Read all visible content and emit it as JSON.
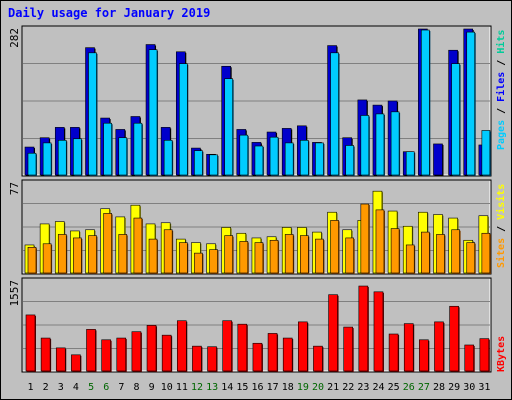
{
  "title": "Daily usage for January 2019",
  "chart_data": [
    {
      "type": "bar",
      "panel": "pages-files-hits",
      "ymax_label": "282",
      "ylim": [
        0,
        282
      ],
      "grid": true,
      "categories": [
        "1",
        "2",
        "3",
        "4",
        "5",
        "6",
        "7",
        "8",
        "9",
        "10",
        "11",
        "12",
        "13",
        "14",
        "15",
        "16",
        "17",
        "18",
        "19",
        "20",
        "21",
        "22",
        "23",
        "24",
        "25",
        "26",
        "27",
        "28",
        "29",
        "30",
        "31"
      ],
      "series": [
        {
          "name": "Pages",
          "color": "#0000cc",
          "values": [
            54,
            72,
            92,
            92,
            246,
            110,
            88,
            113,
            252,
            92,
            238,
            52,
            40,
            210,
            88,
            63,
            83,
            90,
            95,
            63,
            250,
            72,
            145,
            135,
            143,
            45,
            290,
            60,
            241,
            290,
            58
          ]
        },
        {
          "name": "Files",
          "color": "#0066cc",
          "values": [
            0,
            0,
            0,
            0,
            0,
            0,
            0,
            0,
            0,
            0,
            0,
            0,
            0,
            0,
            0,
            0,
            0,
            0,
            0,
            0,
            0,
            0,
            0,
            0,
            0,
            0,
            0,
            0,
            0,
            0,
            0
          ]
        },
        {
          "name": "Hits",
          "color": "#00ccff",
          "values": [
            42,
            62,
            67,
            70,
            236,
            100,
            72,
            100,
            242,
            67,
            215,
            47,
            39,
            186,
            77,
            56,
            73,
            62,
            67,
            62,
            236,
            57,
            115,
            118,
            122,
            45,
            280,
            0,
            215,
            276,
            86
          ]
        }
      ],
      "legend": [
        {
          "label": "Pages",
          "color": "#00ccff"
        },
        {
          "label": "Files",
          "color": "#0000ff"
        },
        {
          "label": "Hits",
          "color": "#00cc99"
        }
      ]
    },
    {
      "type": "bar",
      "panel": "sites-visits",
      "ymax_label": "77",
      "ylim": [
        0,
        77
      ],
      "grid": true,
      "categories": [
        "1",
        "2",
        "3",
        "4",
        "5",
        "6",
        "7",
        "8",
        "9",
        "10",
        "11",
        "12",
        "13",
        "14",
        "15",
        "16",
        "17",
        "18",
        "19",
        "20",
        "21",
        "22",
        "23",
        "24",
        "25",
        "26",
        "27",
        "28",
        "29",
        "30",
        "31"
      ],
      "series": [
        {
          "name": "Visits",
          "color": "#ffff00",
          "values": [
            24,
            42,
            44,
            36,
            37,
            55,
            48,
            58,
            42,
            43,
            29,
            26,
            25,
            39,
            34,
            30,
            31,
            39,
            39,
            35,
            52,
            37,
            45,
            70,
            53,
            40,
            52,
            50,
            47,
            28,
            49
          ]
        },
        {
          "name": "Sites",
          "color": "#ff9900",
          "values": [
            22,
            25,
            33,
            30,
            32,
            51,
            33,
            47,
            29,
            37,
            26,
            17,
            20,
            32,
            27,
            26,
            28,
            33,
            32,
            29,
            45,
            30,
            59,
            54,
            38,
            24,
            35,
            33,
            37,
            26,
            34
          ]
        }
      ],
      "legend": [
        {
          "label": "Sites",
          "color": "#ff9900"
        },
        {
          "label": "Visits",
          "color": "#ffff00"
        }
      ]
    },
    {
      "type": "bar",
      "panel": "kbytes",
      "ymax_label": "1557",
      "ylim": [
        0,
        1557
      ],
      "grid": true,
      "categories": [
        "1",
        "2",
        "3",
        "4",
        "5",
        "6",
        "7",
        "8",
        "9",
        "10",
        "11",
        "12",
        "13",
        "14",
        "15",
        "16",
        "17",
        "18",
        "19",
        "20",
        "21",
        "22",
        "23",
        "24",
        "25",
        "26",
        "27",
        "28",
        "29",
        "30",
        "31"
      ],
      "series": [
        {
          "name": "KBytes",
          "color": "#ff0000",
          "values": [
            970,
            570,
            400,
            280,
            720,
            540,
            570,
            680,
            790,
            620,
            870,
            430,
            420,
            870,
            810,
            480,
            650,
            570,
            850,
            430,
            1320,
            760,
            1470,
            1370,
            640,
            820,
            540,
            850,
            1120,
            450,
            560
          ]
        }
      ],
      "legend": [
        {
          "label": "KBytes",
          "color": "#ff0000"
        }
      ]
    }
  ],
  "x_labels": [
    {
      "text": "1",
      "color": "#000000"
    },
    {
      "text": "2",
      "color": "#000000"
    },
    {
      "text": "3",
      "color": "#000000"
    },
    {
      "text": "4",
      "color": "#000000"
    },
    {
      "text": "5",
      "color": "#006600"
    },
    {
      "text": "6",
      "color": "#006600"
    },
    {
      "text": "7",
      "color": "#000000"
    },
    {
      "text": "8",
      "color": "#000000"
    },
    {
      "text": "9",
      "color": "#000000"
    },
    {
      "text": "10",
      "color": "#000000"
    },
    {
      "text": "11",
      "color": "#000000"
    },
    {
      "text": "12",
      "color": "#006600"
    },
    {
      "text": "13",
      "color": "#006600"
    },
    {
      "text": "14",
      "color": "#000000"
    },
    {
      "text": "15",
      "color": "#000000"
    },
    {
      "text": "16",
      "color": "#000000"
    },
    {
      "text": "17",
      "color": "#000000"
    },
    {
      "text": "18",
      "color": "#000000"
    },
    {
      "text": "19",
      "color": "#006600"
    },
    {
      "text": "20",
      "color": "#006600"
    },
    {
      "text": "21",
      "color": "#000000"
    },
    {
      "text": "22",
      "color": "#000000"
    },
    {
      "text": "23",
      "color": "#000000"
    },
    {
      "text": "24",
      "color": "#000000"
    },
    {
      "text": "25",
      "color": "#000000"
    },
    {
      "text": "26",
      "color": "#006600"
    },
    {
      "text": "27",
      "color": "#006600"
    },
    {
      "text": "28",
      "color": "#000000"
    },
    {
      "text": "29",
      "color": "#000000"
    },
    {
      "text": "30",
      "color": "#000000"
    },
    {
      "text": "31",
      "color": "#000000"
    }
  ]
}
